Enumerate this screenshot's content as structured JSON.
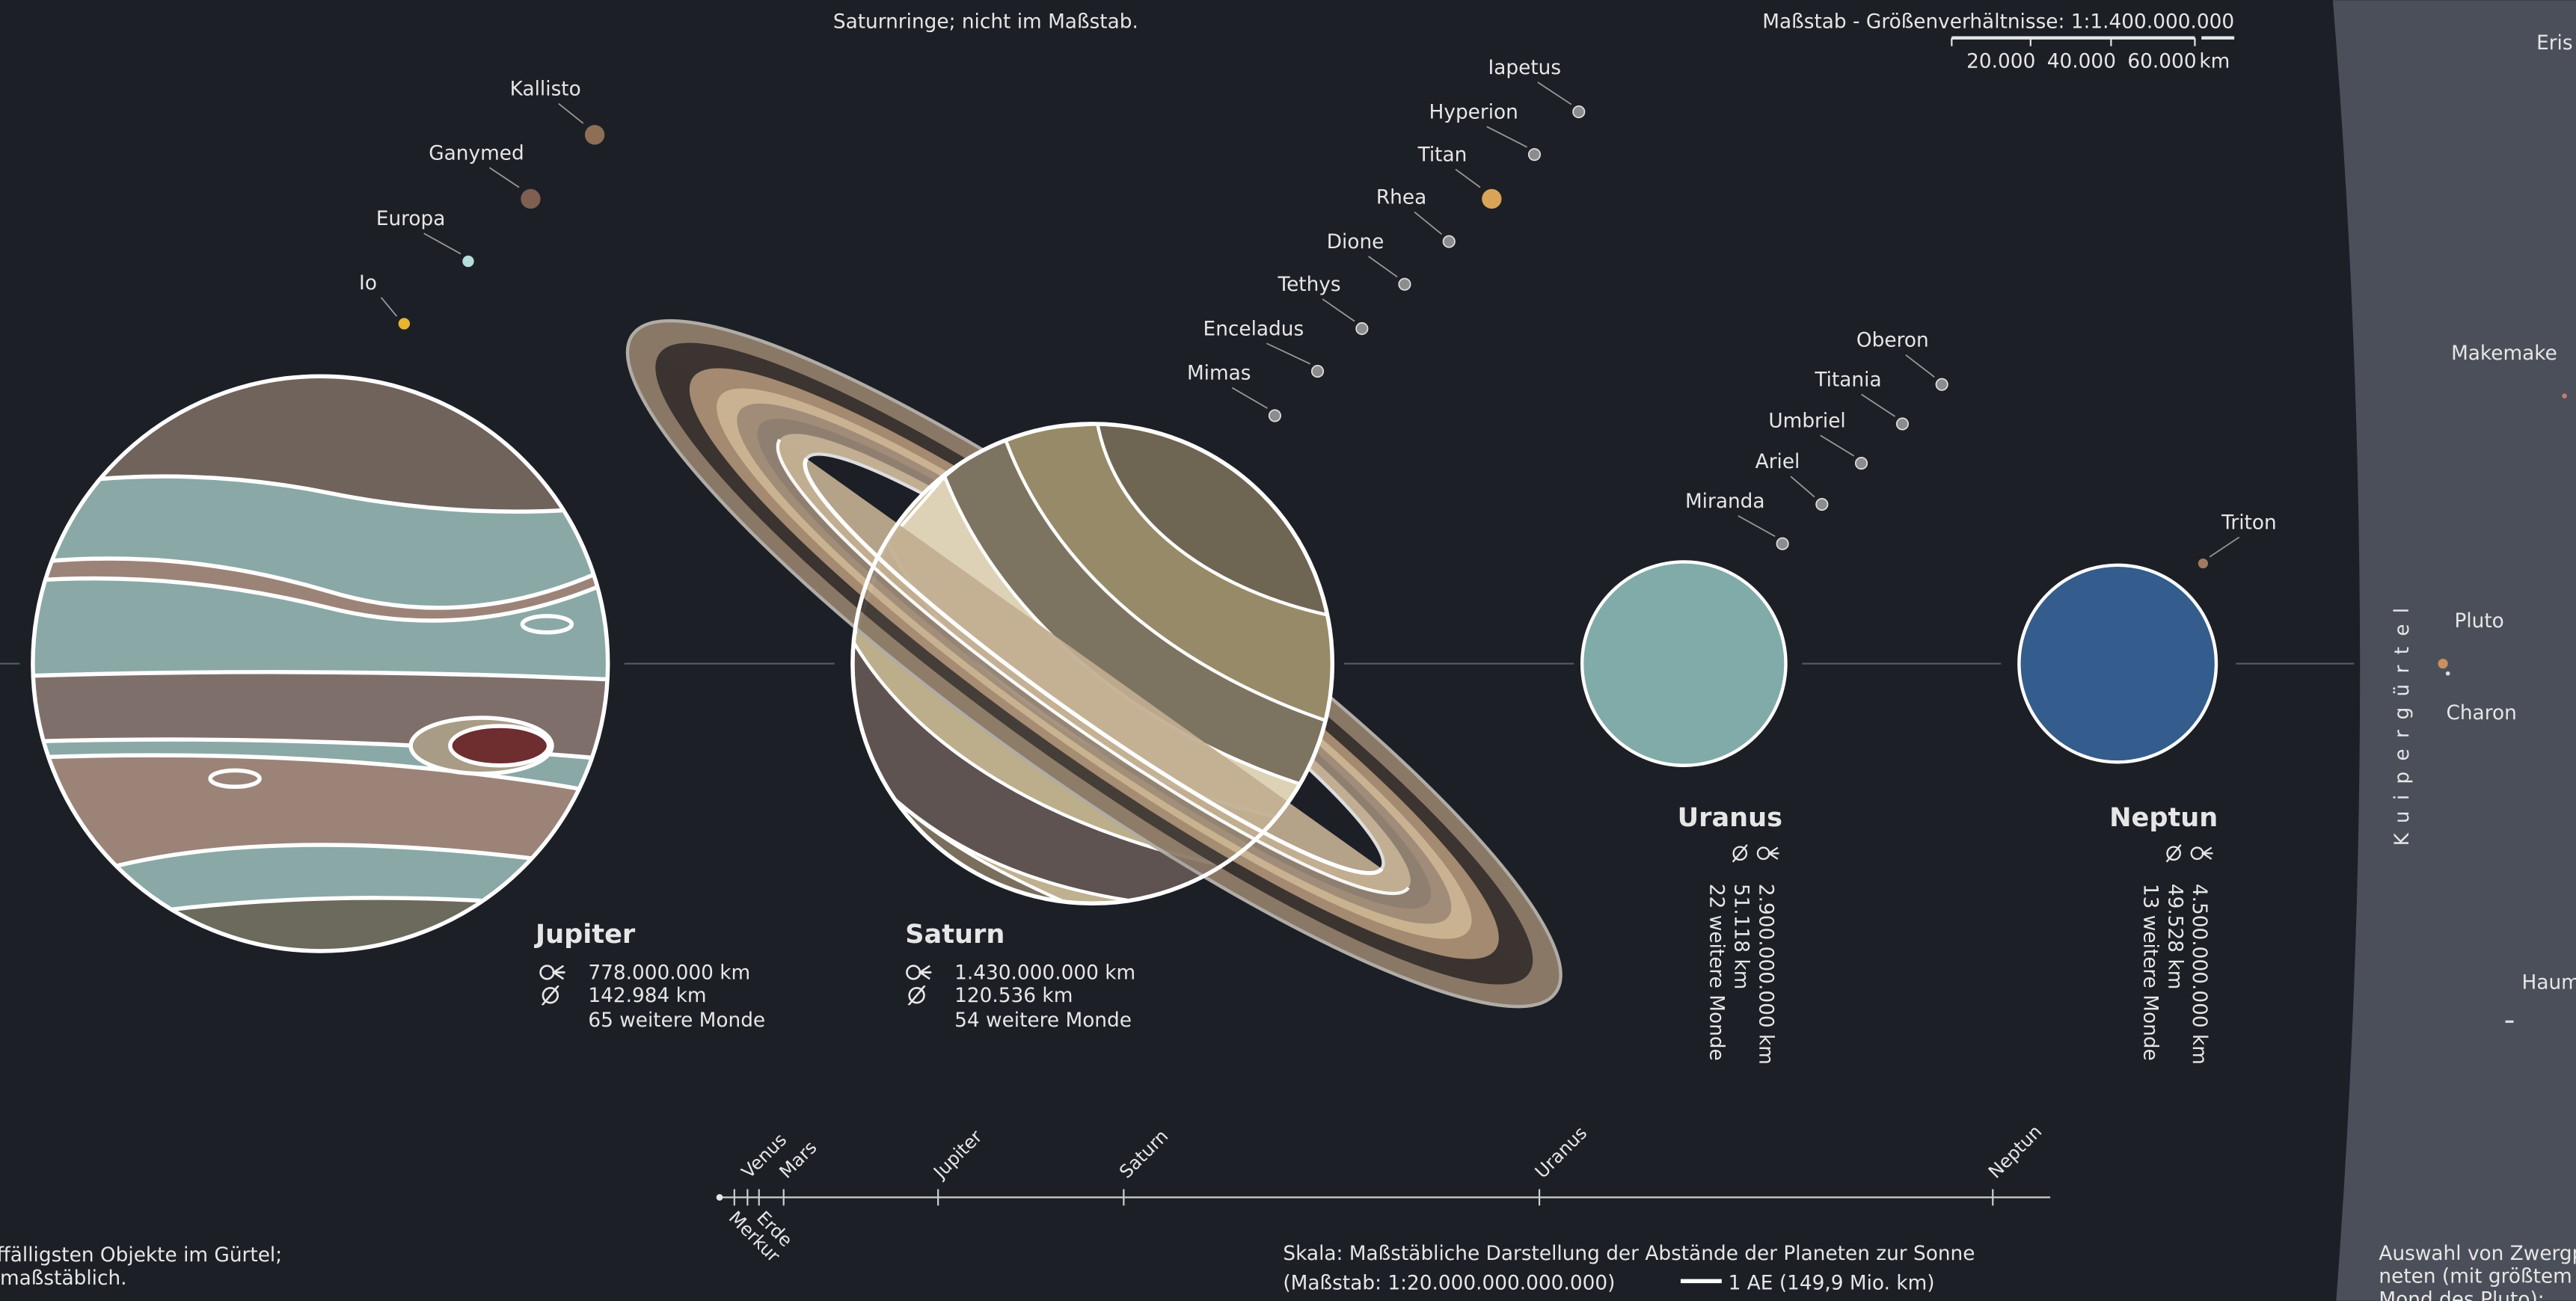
{
  "header": {
    "note": "Saturnringe; nicht im Maßstab.",
    "scale_title": "Maßstab - Größenverhältnisse: 1:1.400.000.000",
    "scale_ticks": [
      "20.000",
      "40.000",
      "60.000"
    ],
    "scale_unit": "km"
  },
  "planets": [
    {
      "name": "Jupiter",
      "distance": "778.000.000 km",
      "diameter": "142.984 km",
      "moons_note": "65 weitere Monde",
      "moons": [
        "Kallisto",
        "Ganymed",
        "Europa",
        "Io"
      ]
    },
    {
      "name": "Saturn",
      "distance": "1.430.000.000 km",
      "diameter": "120.536 km",
      "moons_note": "54 weitere Monde",
      "moons": [
        "Iapetus",
        "Hyperion",
        "Titan",
        "Rhea",
        "Dione",
        "Tethys",
        "Enceladus",
        "Mimas"
      ]
    },
    {
      "name": "Uranus",
      "distance": "2.900.000.000 km",
      "diameter": "51.118 km",
      "moons_note": "22 weitere Monde",
      "moons": [
        "Oberon",
        "Titania",
        "Umbriel",
        "Ariel",
        "Miranda"
      ]
    },
    {
      "name": "Neptun",
      "distance": "4.500.000.000 km",
      "diameter": "49.528 km",
      "moons_note": "13 weitere Monde",
      "moons": [
        "Triton"
      ]
    }
  ],
  "kuiper": {
    "title": "Kuipergürtel",
    "objects": [
      "Eris",
      "Makemake",
      "Pluto",
      "Charon",
      "Haum"
    ],
    "note": [
      "Auswahl von Zwergpl",
      "neten (mit größtem",
      "Mond des Pluto):"
    ]
  },
  "left_note": [
    "ffälligsten Objekte im Gürtel;",
    "maßstäblich."
  ],
  "distance_axis": {
    "labels_above": [
      "Venus",
      "Mars",
      "Jupiter",
      "Saturn",
      "Uranus",
      "Neptun"
    ],
    "labels_below": [
      "Erde",
      "Merkur"
    ],
    "caption": "Skala: Maßstäbliche Darstellung der Abstände der Planeten zur Sonne",
    "caption_scale": "(Maßstab: 1:20.000.000.000.000)",
    "unit_label": "1 AE (149,9 Mio. km)"
  }
}
